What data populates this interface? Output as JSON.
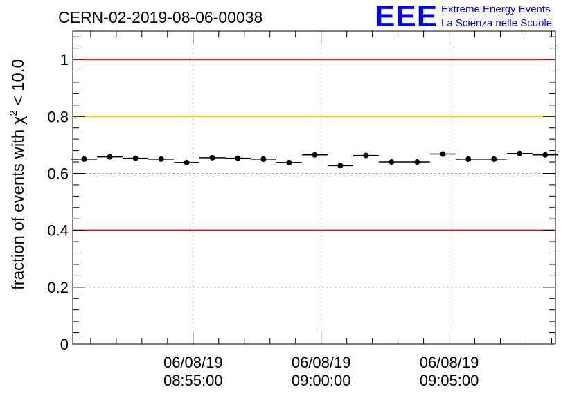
{
  "chart_data": {
    "type": "scatter",
    "title": "CERN-02-2019-08-06-00038",
    "ylabel_parts": {
      "prefix": "fraction of events with ",
      "symbol": "χ",
      "power": "2",
      "suffix": " < 10.0"
    },
    "ylim": [
      0,
      1.1
    ],
    "y_ticks": [
      "0",
      "0.2",
      "0.4",
      "0.6",
      "0.8",
      "1"
    ],
    "y_tick_values": [
      0,
      0.2,
      0.4,
      0.6,
      0.8,
      1.0
    ],
    "x_ticks": [
      {
        "line1": "06/08/19",
        "line2": "08:55:00"
      },
      {
        "line1": "06/08/19",
        "line2": "09:00:00"
      },
      {
        "line1": "06/08/19",
        "line2": "09:05:00"
      }
    ],
    "x_tick_minutes": [
      55,
      60,
      65
    ],
    "xlim_minutes": [
      50.3,
      69.15
    ],
    "bin_minutes": 1.0,
    "x_minutes": [
      50.75,
      51.75,
      52.75,
      53.75,
      54.75,
      55.75,
      56.75,
      57.75,
      58.75,
      59.75,
      60.75,
      61.75,
      62.75,
      63.75,
      64.75,
      65.75,
      66.75,
      67.75,
      68.75
    ],
    "values": [
      0.65,
      0.658,
      0.653,
      0.65,
      0.638,
      0.655,
      0.653,
      0.65,
      0.638,
      0.665,
      0.627,
      0.663,
      0.64,
      0.64,
      0.668,
      0.65,
      0.65,
      0.67,
      0.665
    ],
    "reference_lines": [
      {
        "y": 1.0,
        "color": "#e8000b"
      },
      {
        "y": 0.8,
        "color": "#ffc800"
      },
      {
        "y": 0.4,
        "color": "#e8000b"
      }
    ],
    "grid": true,
    "marker_color": "#000000"
  },
  "logo": {
    "text": "EEE",
    "line1": "Extreme Energy Events",
    "line2": "La Scienza nelle Scuole",
    "color": "#0000ee"
  }
}
